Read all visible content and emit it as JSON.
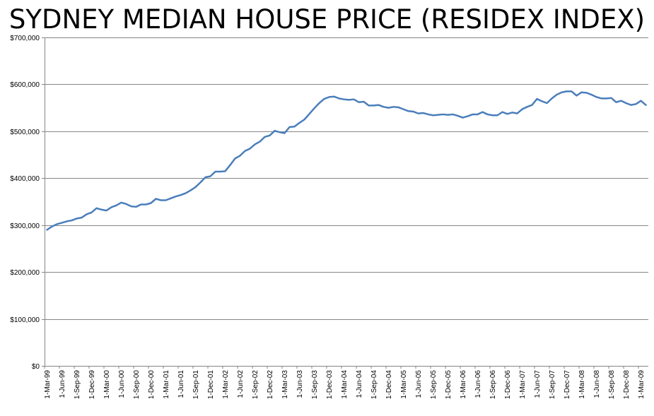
{
  "chart_data": {
    "type": "line",
    "title": "SYDNEY MEDIAN HOUSE PRICE (RESIDEX INDEX)",
    "xlabel": "",
    "ylabel": "",
    "ylim": [
      0,
      700000
    ],
    "y_ticks": [
      0,
      100000,
      200000,
      300000,
      400000,
      500000,
      600000,
      700000
    ],
    "y_tick_labels": [
      "$0",
      "$100,000",
      "$200,000",
      "$300,000",
      "$400,000",
      "$500,000",
      "$600,000",
      "$700,000"
    ],
    "x_tick_labels": [
      "1-Mar-99",
      "1-Jun-99",
      "1-Sep-99",
      "1-Dec-99",
      "1-Mar-00",
      "1-Jun-00",
      "1-Sep-00",
      "1-Dec-00",
      "1-Mar-01",
      "1-Jun-01",
      "1-Sep-01",
      "1-Dec-01",
      "1-Mar-02",
      "1-Jun-02",
      "1-Sep-02",
      "1-Dec-02",
      "1-Mar-03",
      "1-Jun-03",
      "1-Sep-03",
      "1-Dec-03",
      "1-Mar-04",
      "1-Jun-04",
      "1-Sep-04",
      "1-Dec-04",
      "1-Mar-05",
      "1-Jun-05",
      "1-Sep-05",
      "1-Dec-05",
      "1-Mar-06",
      "1-Jun-06",
      "1-Sep-06",
      "1-Dec-06",
      "1-Mar-07",
      "1-Jun-07",
      "1-Sep-07",
      "1-Dec-07",
      "1-Mar-08",
      "1-Jun-08",
      "1-Sep-08",
      "1-Dec-08",
      "1-Mar-09"
    ],
    "grid": true,
    "line_color": "#4a7ebb",
    "series": [
      {
        "name": "Sydney median house price",
        "values": [
          290000,
          297000,
          302000,
          305000,
          308000,
          310000,
          314000,
          316000,
          323000,
          327000,
          336000,
          333000,
          331000,
          338000,
          342000,
          348000,
          345000,
          340000,
          339000,
          344000,
          344000,
          347000,
          356000,
          353000,
          353000,
          357000,
          361000,
          364000,
          368000,
          374000,
          381000,
          391000,
          402000,
          404000,
          414000,
          414000,
          415000,
          428000,
          442000,
          448000,
          458000,
          463000,
          472000,
          478000,
          488000,
          491000,
          501000,
          498000,
          496000,
          509000,
          510000,
          518000,
          525000,
          537000,
          549000,
          560000,
          569000,
          573000,
          574000,
          570000,
          568000,
          567000,
          568000,
          562000,
          563000,
          555000,
          555000,
          556000,
          552000,
          550000,
          552000,
          551000,
          547000,
          543000,
          542000,
          538000,
          539000,
          536000,
          534000,
          535000,
          536000,
          535000,
          536000,
          533000,
          529000,
          532000,
          536000,
          536000,
          541000,
          536000,
          534000,
          534000,
          541000,
          537000,
          540000,
          538000,
          547000,
          552000,
          556000,
          569000,
          564000,
          560000,
          570000,
          578000,
          583000,
          585000,
          585000,
          576000,
          583000,
          582000,
          578000,
          573000,
          570000,
          570000,
          571000,
          562000,
          565000,
          560000,
          556000,
          558000,
          565000,
          556000
        ]
      }
    ]
  }
}
